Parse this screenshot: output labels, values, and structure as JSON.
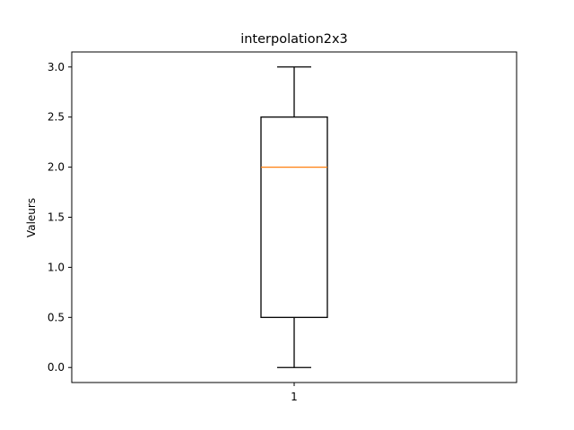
{
  "chart_data": {
    "type": "box",
    "title": "interpolation2x3",
    "xlabel": "",
    "ylabel": "Valeurs",
    "categories": [
      "1"
    ],
    "boxes": [
      {
        "category": "1",
        "whisker_low": 0.0,
        "q1": 0.5,
        "median": 2.0,
        "q3": 2.5,
        "whisker_high": 3.0
      }
    ],
    "ylim": [
      -0.15,
      3.15
    ],
    "yticks": [
      0.0,
      0.5,
      1.0,
      1.5,
      2.0,
      2.5,
      3.0
    ],
    "ytick_labels": [
      "0.0",
      "0.5",
      "1.0",
      "1.5",
      "2.0",
      "2.5",
      "3.0"
    ],
    "grid": false,
    "legend": "none",
    "colors": {
      "box": "#000000",
      "median": "#ff7f0e",
      "axes": "#000000"
    }
  }
}
